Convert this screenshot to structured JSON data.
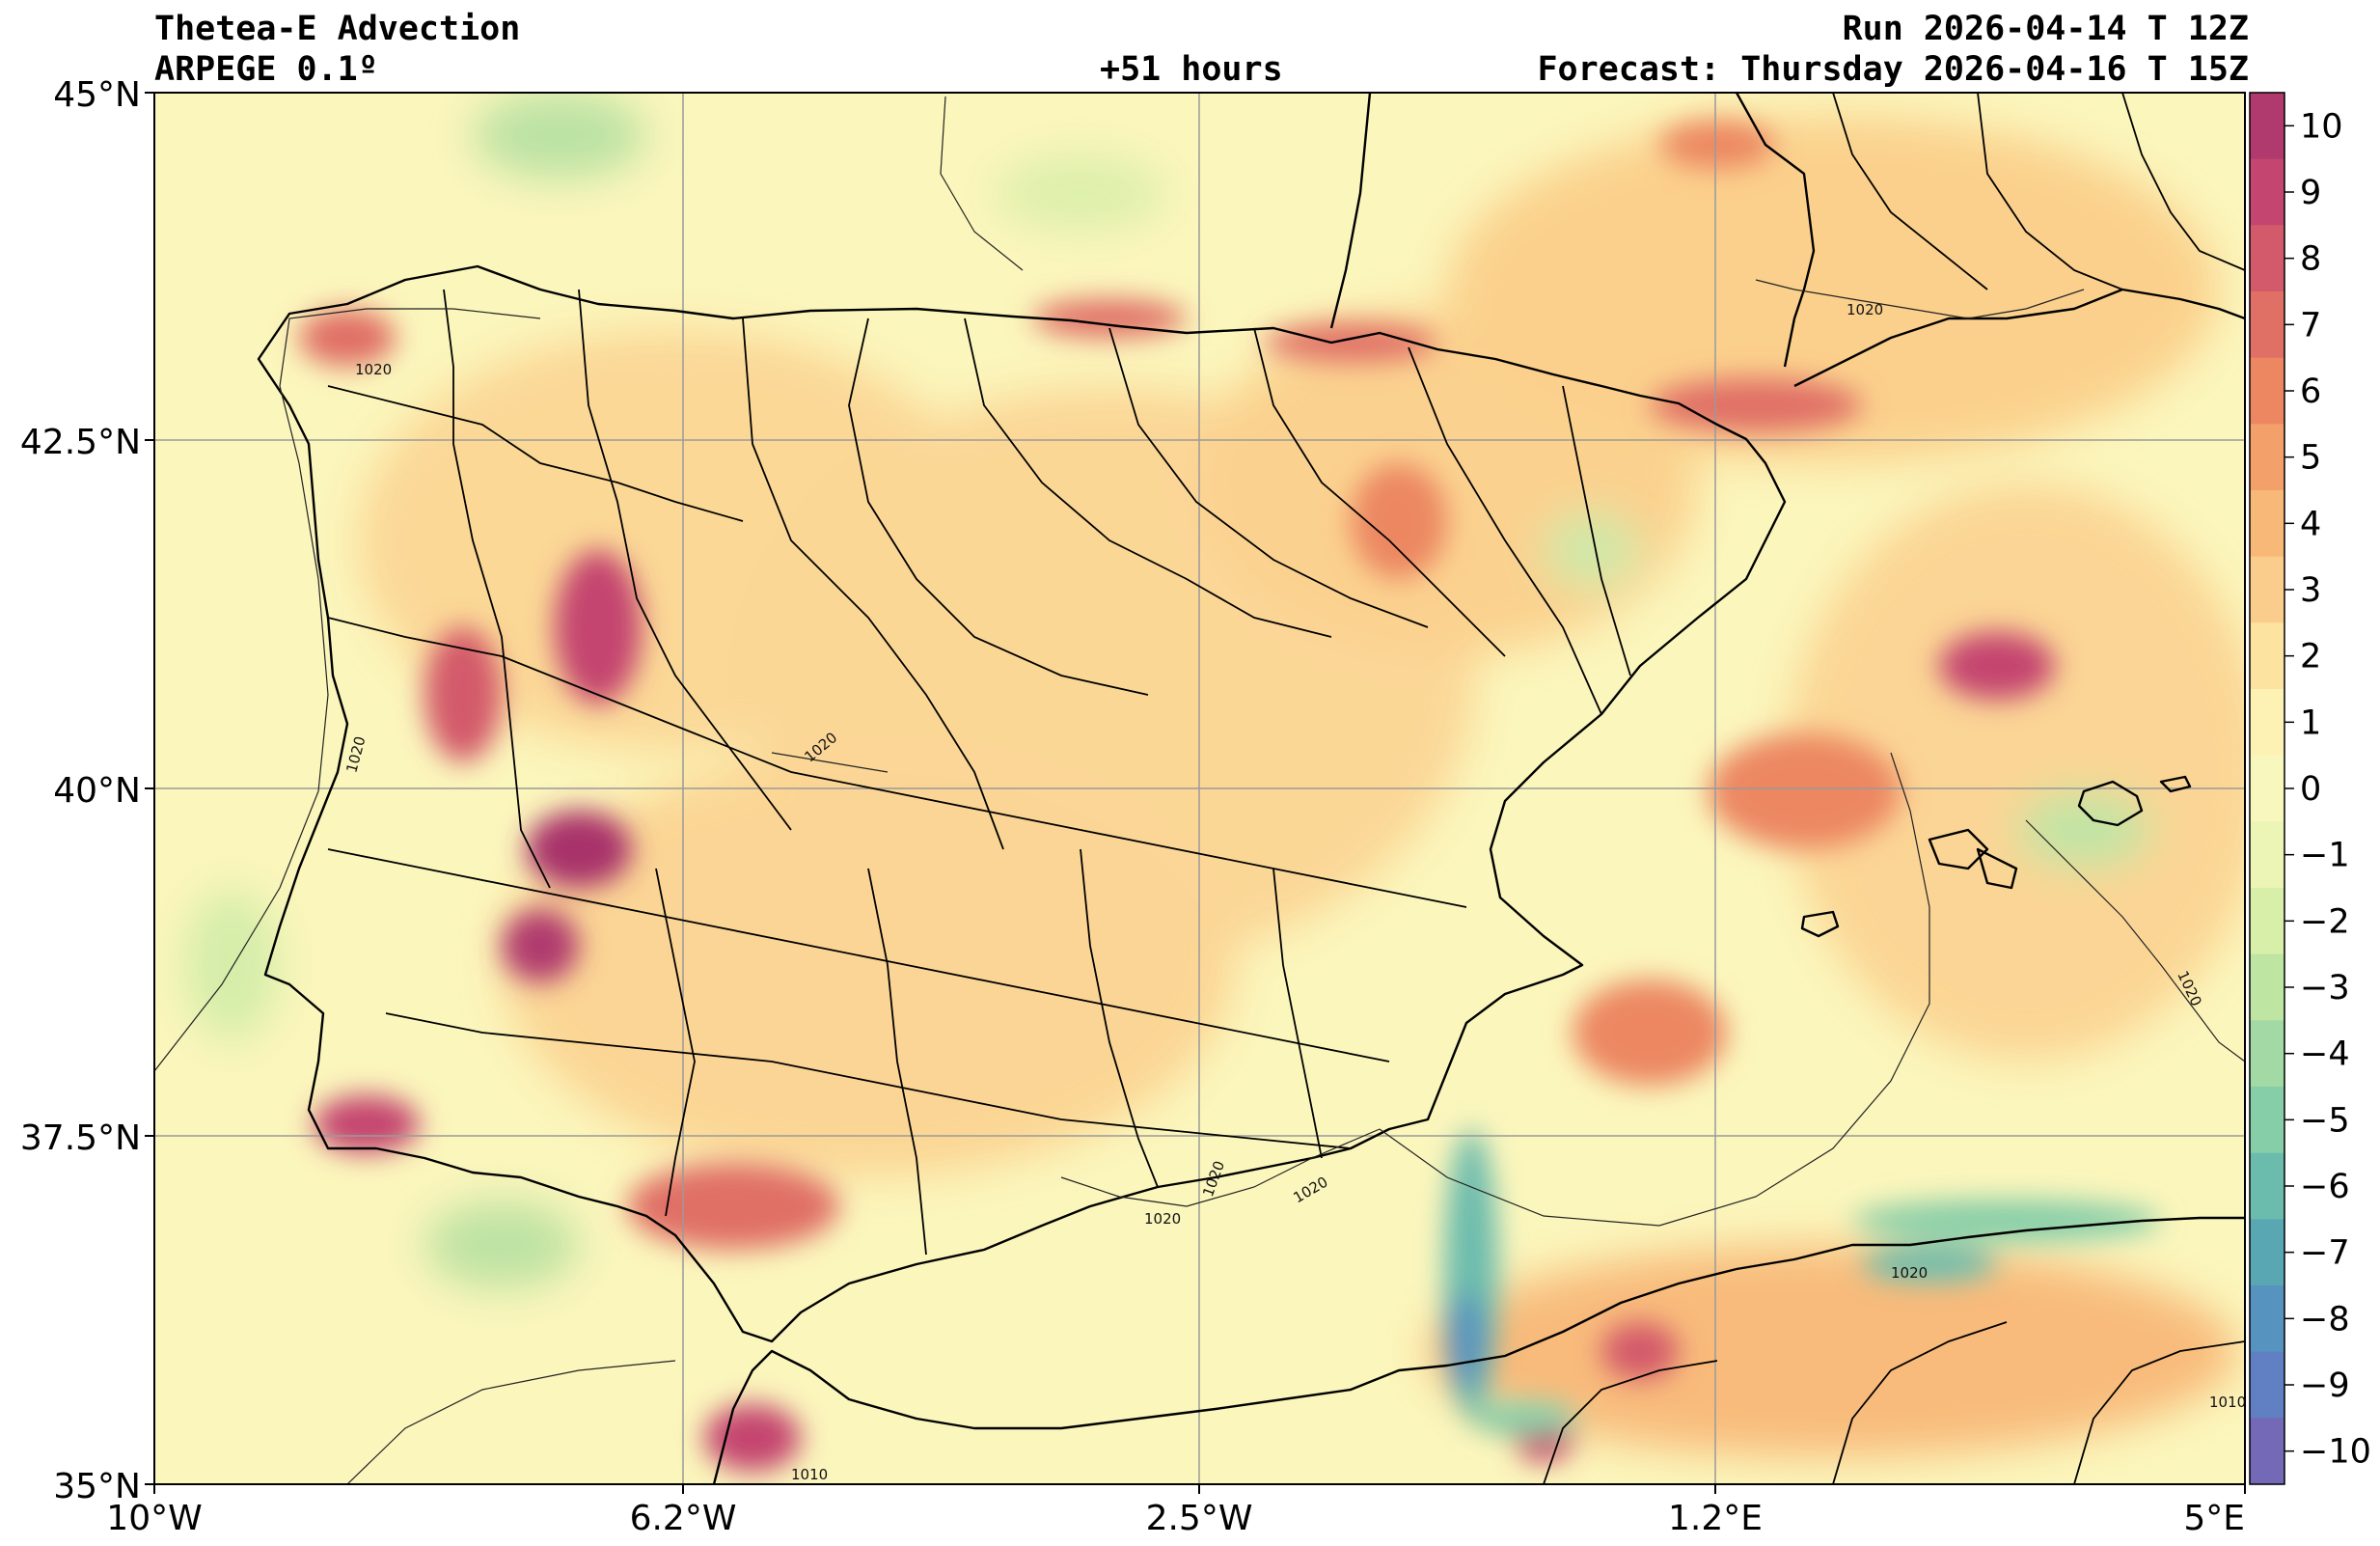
{
  "header": {
    "title_left_1": "Thetea-E Advection",
    "title_left_2": "ARPEGE 0.1º",
    "title_center": "+51 hours",
    "title_right_1": "Run 2026-04-14 T 12Z",
    "title_right_2": "Forecast: Thursday 2026-04-16 T 15Z"
  },
  "axes": {
    "lon_ticks": [
      "10°W",
      "6.2°W",
      "2.5°W",
      "1.2°E",
      "5°E"
    ],
    "lat_ticks": [
      "45°N",
      "42.5°N",
      "40°N",
      "37.5°N",
      "35°N"
    ]
  },
  "colorbar": {
    "ticks": [
      "10",
      "9",
      "8",
      "7",
      "6",
      "5",
      "4",
      "3",
      "2",
      "1",
      "0",
      "−1",
      "−2",
      "−3",
      "−4",
      "−5",
      "−6",
      "−7",
      "−8",
      "−9",
      "−10"
    ],
    "colors_top_to_bottom": [
      "#b03a6e",
      "#c4456f",
      "#d35a6b",
      "#e06f66",
      "#ec8762",
      "#f4a06b",
      "#f8b878",
      "#fbcd8c",
      "#fde3a0",
      "#fdf2b4",
      "#f8f7be",
      "#ecf5b5",
      "#d8efaa",
      "#bfe5a3",
      "#a2d9a4",
      "#86cea8",
      "#6cbcad",
      "#5aa7b4",
      "#5793bf",
      "#617fc3",
      "#7469b6"
    ]
  },
  "isobar_labels": [
    "1020",
    "1020",
    "1020",
    "1020",
    "1020",
    "1020",
    "1020",
    "1020",
    "1020",
    "1010",
    "1010"
  ]
}
